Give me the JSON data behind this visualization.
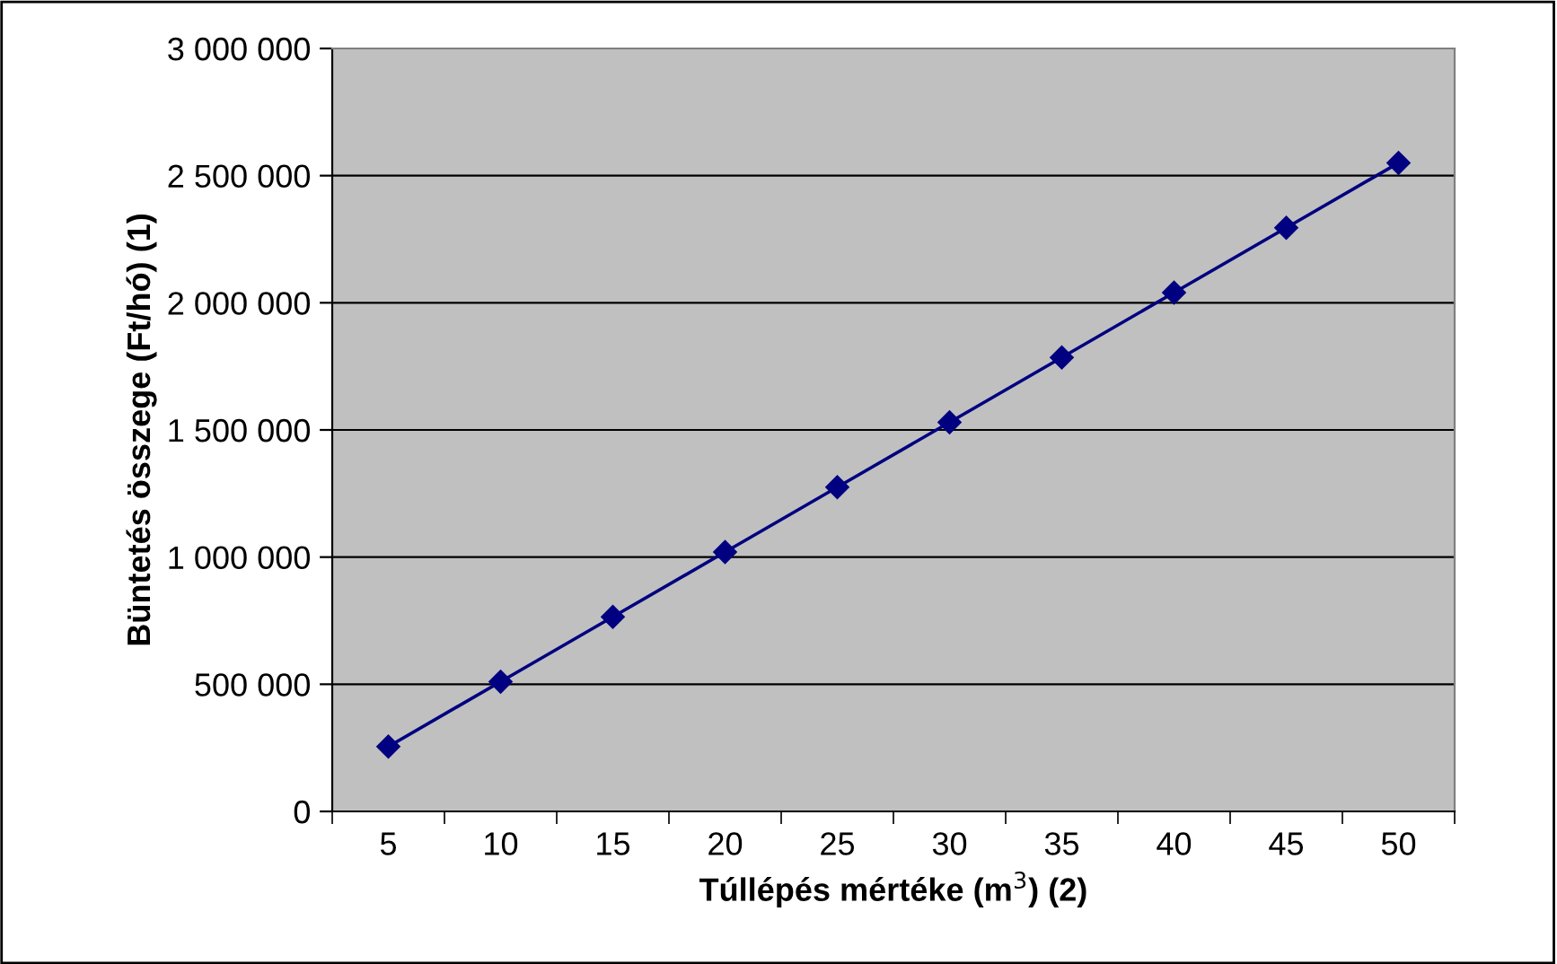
{
  "chart_data": {
    "type": "line",
    "xlabel": "Túllépés mértéke (m$^{3}$) (2)",
    "ylabel": "Büntetés összege (Ft/hó) (1)",
    "categories": [
      "5",
      "10",
      "15",
      "20",
      "25",
      "30",
      "35",
      "40",
      "45",
      "50"
    ],
    "series": [
      {
        "color": "#000080",
        "values": [
          255000,
          510000,
          765000,
          1020000,
          1275000,
          1530000,
          1785000,
          2040000,
          2295000,
          2550000
        ]
      }
    ],
    "ylim": [
      0,
      3000000
    ],
    "yticks": [
      {
        "value": 0,
        "label": "0"
      },
      {
        "value": 500000,
        "label": "500 000"
      },
      {
        "value": 1000000,
        "label": "1 000 000"
      },
      {
        "value": 1500000,
        "label": "1 500 000"
      },
      {
        "value": 2000000,
        "label": "2 000 000"
      },
      {
        "value": 2500000,
        "label": "2 500 000"
      },
      {
        "value": 3000000,
        "label": "3 000 000"
      }
    ],
    "grid": "y",
    "marker": "diamond",
    "line_style": "solid",
    "legend": false
  }
}
